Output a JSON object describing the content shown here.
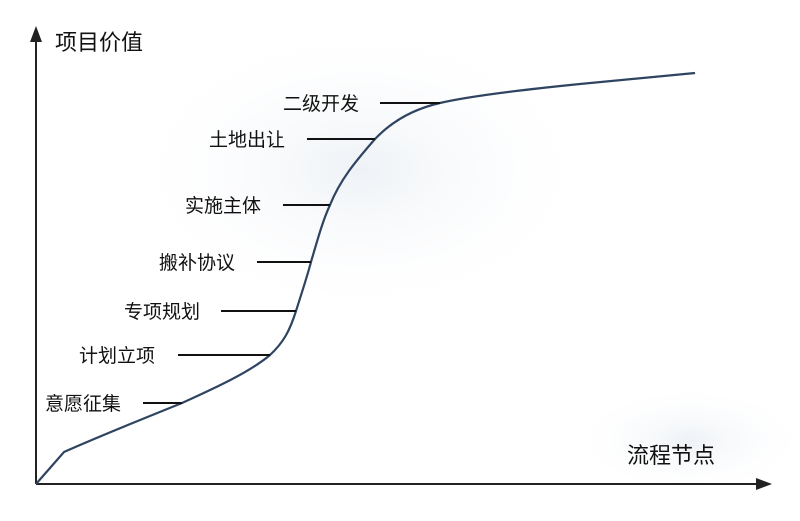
{
  "diagram": {
    "y_axis_title": "项目价值",
    "x_axis_title": "流程节点",
    "stages": [
      {
        "id": "willingness",
        "label": "意愿征集"
      },
      {
        "id": "plan-approval",
        "label": "计划立项"
      },
      {
        "id": "special-planning",
        "label": "专项规划"
      },
      {
        "id": "compensation",
        "label": "搬补协议"
      },
      {
        "id": "implementer",
        "label": "实施主体"
      },
      {
        "id": "land-transfer",
        "label": "土地出让"
      },
      {
        "id": "secondary-dev",
        "label": "二级开发"
      }
    ],
    "colors": {
      "curve": "#2f4460",
      "axis": "#222222",
      "text": "#111111"
    }
  }
}
